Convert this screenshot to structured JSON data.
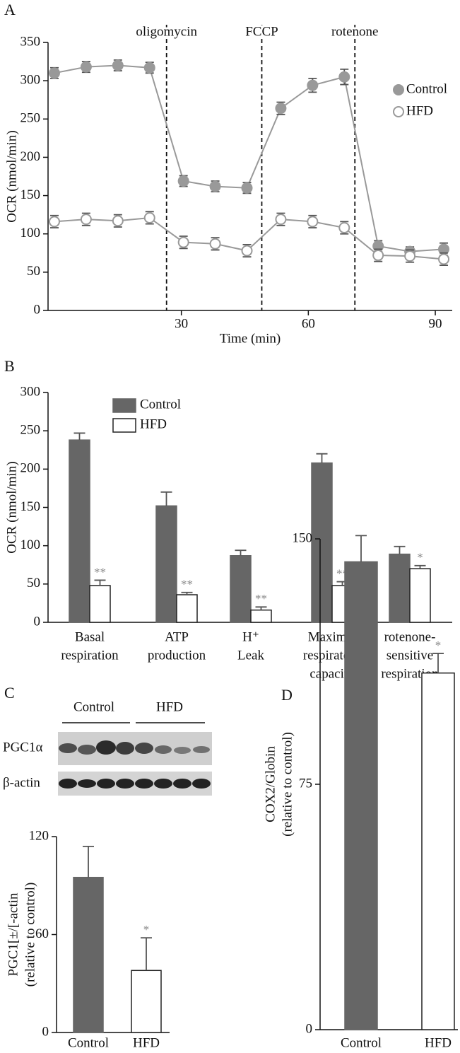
{
  "chart_data": [
    {
      "type": "line",
      "panel_label": "A",
      "xlabel": "Time (min)",
      "ylabel": "OCR (nmol/min)",
      "x": [
        0,
        7.5,
        15,
        22.5,
        30.5,
        38,
        45.5,
        53.5,
        61,
        68.5,
        76.5,
        84,
        92
      ],
      "xlim": [
        -1.5,
        94
      ],
      "xticks": [
        30,
        60,
        90
      ],
      "ylim": [
        0,
        350
      ],
      "yticks": [
        0,
        50,
        100,
        150,
        200,
        250,
        300,
        350
      ],
      "annotations": [
        {
          "text": "oligomycin",
          "x": 26.5
        },
        {
          "text": "FCCP",
          "x": 49
        },
        {
          "text": "rotenone",
          "x": 71
        }
      ],
      "series": [
        {
          "name": "Control",
          "color": "#999999",
          "fill": "#999999",
          "values": [
            310,
            318,
            320,
            317,
            169,
            162,
            160,
            264,
            294,
            305,
            84,
            77,
            80
          ],
          "errors": [
            7,
            7,
            7,
            7,
            7,
            7,
            7,
            8,
            9,
            10,
            7,
            6,
            8
          ]
        },
        {
          "name": "HFD",
          "color": "#999999",
          "fill": "#ffffff",
          "values": [
            116,
            119,
            117,
            121,
            89,
            87,
            78,
            119,
            116,
            108,
            72,
            71,
            67
          ],
          "errors": [
            8,
            8,
            8,
            8,
            8,
            8,
            8,
            8,
            8,
            8,
            8,
            8,
            8
          ]
        }
      ]
    },
    {
      "type": "bar",
      "panel_label": "B",
      "ylabel": "OCR (nmol/min)",
      "categories": [
        [
          "Basal",
          "respiration"
        ],
        [
          "ATP",
          "production"
        ],
        [
          "H⁺",
          "Leak"
        ],
        [
          "Maximal",
          "respiratory",
          "capacity"
        ],
        [
          "rotenone-",
          "sensitive",
          "respiration"
        ]
      ],
      "ylim": [
        0,
        300
      ],
      "yticks": [
        0,
        50,
        100,
        150,
        200,
        250,
        300
      ],
      "series": [
        {
          "name": "Control",
          "color": "#666666",
          "values": [
            238,
            152,
            87,
            208,
            89
          ],
          "errors": [
            9,
            18,
            7,
            12,
            10
          ]
        },
        {
          "name": "HFD",
          "color": "#ffffff",
          "values": [
            48,
            36,
            16,
            48,
            70
          ],
          "errors": [
            7,
            3,
            4,
            5,
            4
          ],
          "significance": [
            "**",
            "**",
            "**",
            "**",
            "*"
          ]
        }
      ]
    },
    {
      "type": "bar",
      "panel_label": "C",
      "ylabel": [
        "PGC1[±/[-actin",
        "(relative to control)"
      ],
      "blot": {
        "groups": [
          "Control",
          "HFD"
        ],
        "rows": [
          "PGC1α",
          "β-actin"
        ]
      },
      "categories": [
        "Control",
        "HFD"
      ],
      "values": [
        95,
        38
      ],
      "errors": [
        19,
        20
      ],
      "colors": [
        "#666666",
        "#ffffff"
      ],
      "significance": [
        null,
        "*"
      ],
      "ylim": [
        0,
        120
      ],
      "yticks": [
        0,
        60,
        120
      ]
    },
    {
      "type": "bar",
      "panel_label": "D",
      "ylabel": [
        "COX2/Globin",
        "(relative to control)"
      ],
      "categories": [
        "Control",
        "HFD"
      ],
      "values": [
        143,
        109
      ],
      "errors": [
        8,
        6
      ],
      "colors": [
        "#666666",
        "#ffffff"
      ],
      "significance": [
        null,
        "*"
      ],
      "ylim": [
        0,
        150
      ],
      "yticks": [
        0,
        75,
        150
      ]
    }
  ]
}
